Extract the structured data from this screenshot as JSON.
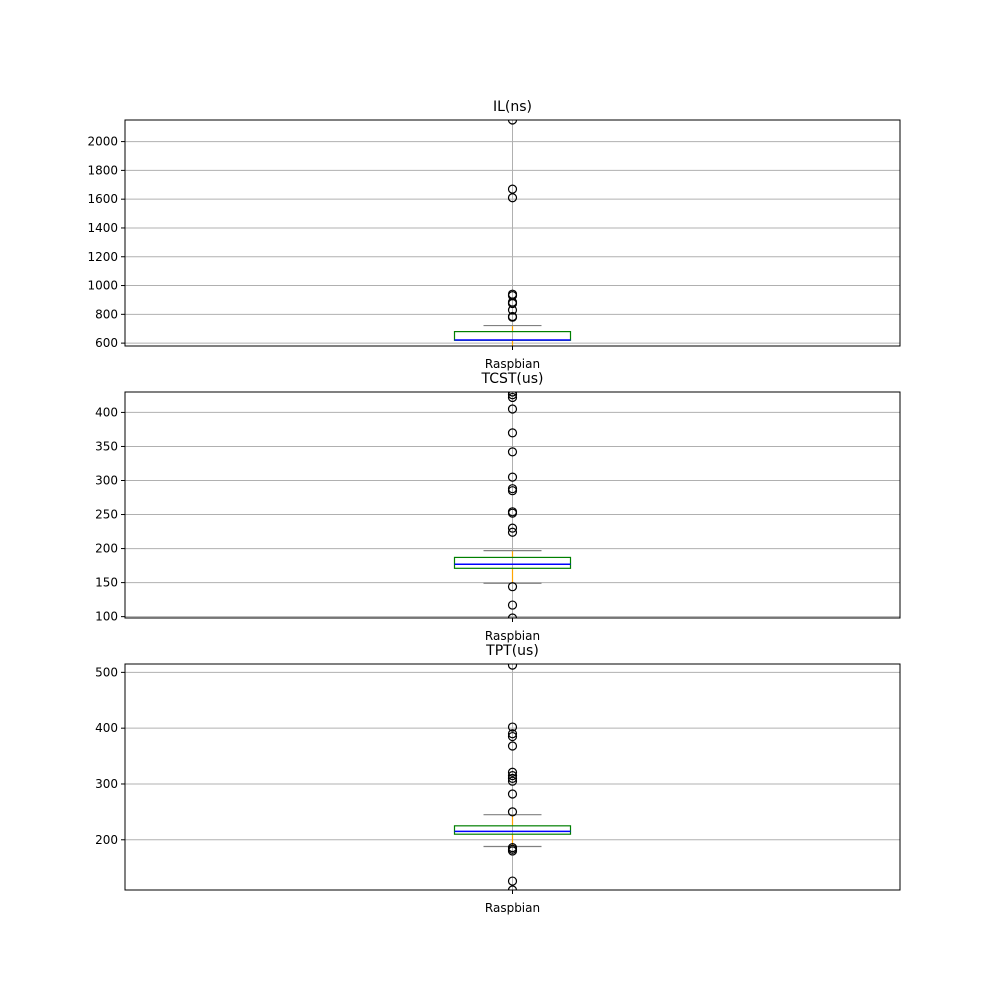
{
  "chart_data": [
    {
      "type": "box",
      "title": "IL(ns)",
      "categories": [
        "Raspbian"
      ],
      "ylim": [
        580,
        2150
      ],
      "yticks": [
        600,
        800,
        1000,
        1200,
        1400,
        1600,
        1800,
        2000
      ],
      "grid": true,
      "colors": {
        "box": "#008000",
        "median": "#0000ff",
        "whisker": "#808080",
        "cap": "#808080",
        "center": "#ffa500"
      },
      "stats": {
        "whisker_low": 560,
        "q1": 620,
        "median": 622,
        "q3": 680,
        "whisker_high": 722
      },
      "fliers": [
        780,
        785,
        830,
        875,
        885,
        930,
        940,
        1610,
        1670,
        2150
      ]
    },
    {
      "type": "box",
      "title": "TCST(us)",
      "categories": [
        "Raspbian"
      ],
      "ylim": [
        98,
        430
      ],
      "yticks": [
        100,
        150,
        200,
        250,
        300,
        350,
        400
      ],
      "grid": true,
      "colors": {
        "box": "#008000",
        "median": "#0000ff",
        "whisker": "#808080",
        "cap": "#808080",
        "center": "#ffa500"
      },
      "stats": {
        "whisker_low": 149,
        "q1": 171,
        "median": 177,
        "q3": 187,
        "whisker_high": 197
      },
      "fliers": [
        98,
        117,
        144,
        224,
        230,
        252,
        254,
        285,
        288,
        305,
        342,
        370,
        405,
        422,
        426,
        430
      ]
    },
    {
      "type": "box",
      "title": "TPT(us)",
      "categories": [
        "Raspbian"
      ],
      "ylim": [
        110,
        515
      ],
      "yticks": [
        200,
        300,
        400,
        500
      ],
      "grid": true,
      "colors": {
        "box": "#008000",
        "median": "#0000ff",
        "whisker": "#808080",
        "cap": "#808080",
        "center": "#ffa500"
      },
      "stats": {
        "whisker_low": 188,
        "q1": 210,
        "median": 215,
        "q3": 225,
        "whisker_high": 245
      },
      "fliers": [
        110,
        126,
        180,
        183,
        186,
        250,
        282,
        305,
        310,
        315,
        321,
        368,
        385,
        390,
        402,
        513
      ]
    }
  ]
}
